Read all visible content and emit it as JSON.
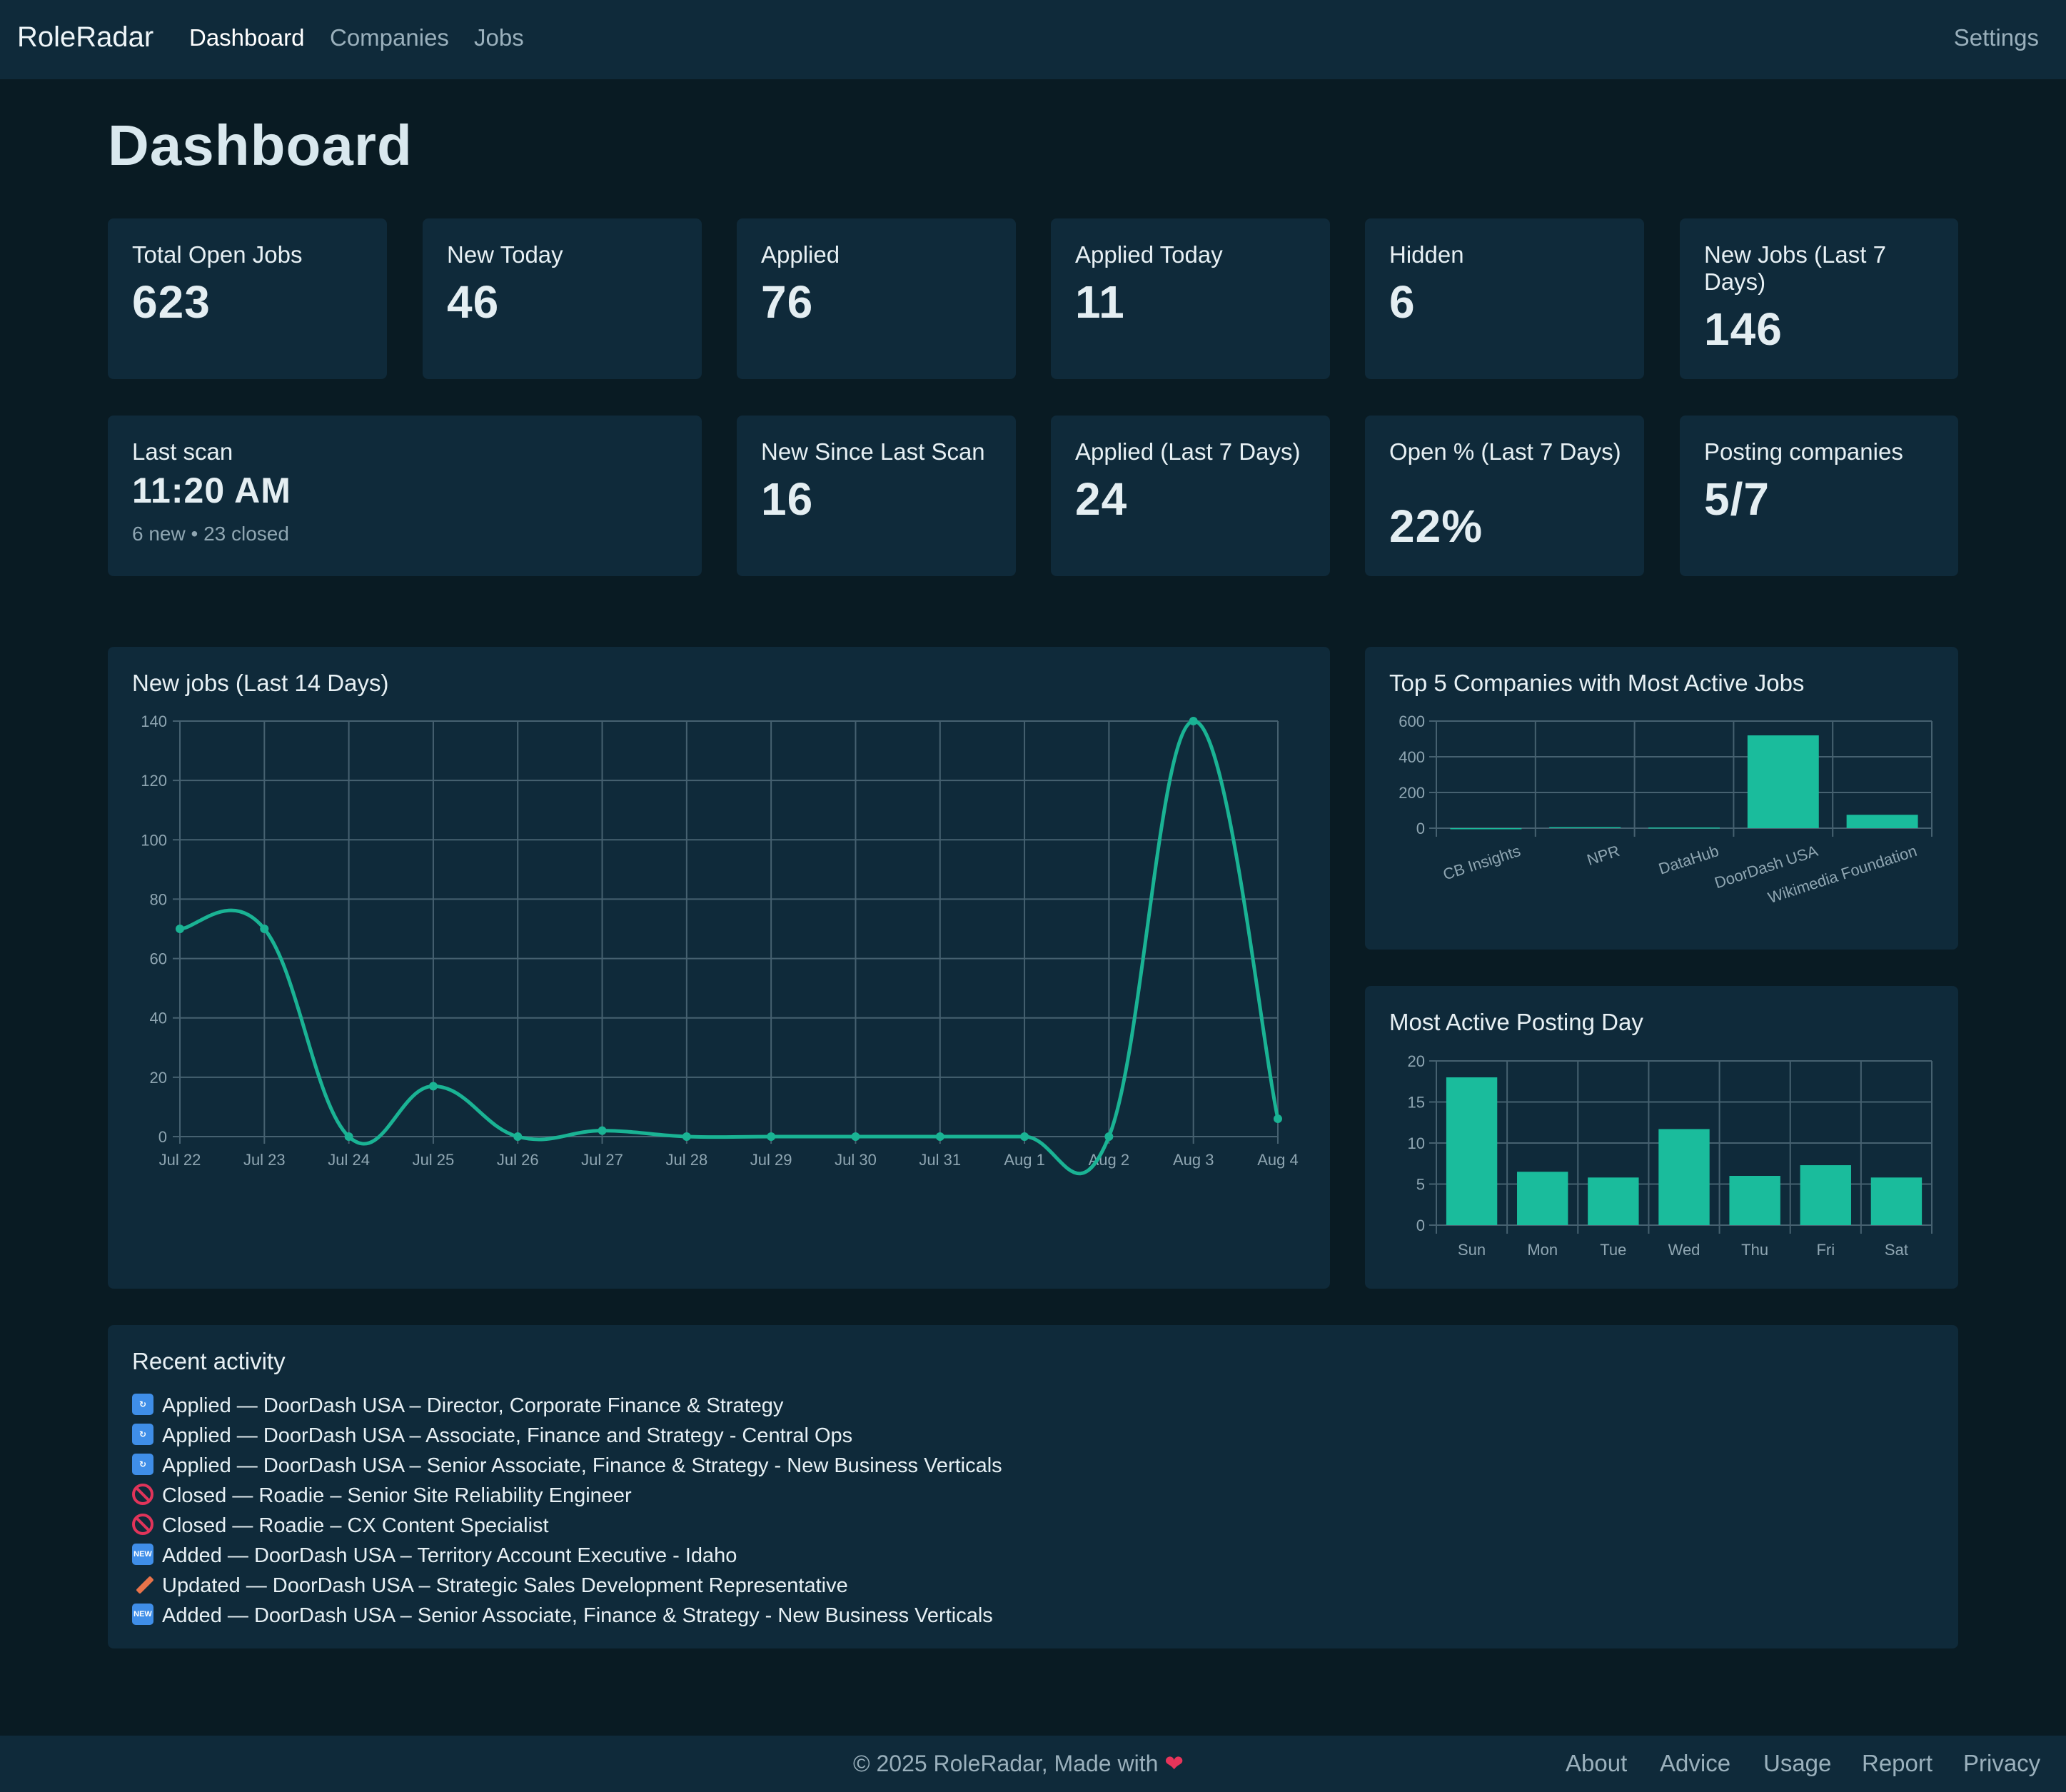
{
  "nav": {
    "brand": "RoleRadar",
    "links": [
      "Dashboard",
      "Companies",
      "Jobs"
    ],
    "settings": "Settings"
  },
  "page": {
    "title": "Dashboard"
  },
  "stats": [
    {
      "label": "Total Open Jobs",
      "value": "623"
    },
    {
      "label": "New Today",
      "value": "46"
    },
    {
      "label": "Applied",
      "value": "76"
    },
    {
      "label": "Applied Today",
      "value": "11"
    },
    {
      "label": "Hidden",
      "value": "6"
    },
    {
      "label": "New Jobs (Last 7 Days)",
      "value": "146"
    },
    {
      "label": "Last scan",
      "value": "11:20 AM",
      "sub": "6 new • 23 closed"
    },
    {
      "label": "New Since Last Scan",
      "value": "16"
    },
    {
      "label": "Applied (Last 7 Days)",
      "value": "24"
    },
    {
      "label": "Open % (Last 7 Days)",
      "value": "22%"
    },
    {
      "label": "Posting companies",
      "value": "5/7"
    }
  ],
  "chart_data": [
    {
      "type": "line",
      "title": "New jobs (Last 14 Days)",
      "x": [
        "Jul 22",
        "Jul 23",
        "Jul 24",
        "Jul 25",
        "Jul 26",
        "Jul 27",
        "Jul 28",
        "Jul 29",
        "Jul 30",
        "Jul 31",
        "Aug 1",
        "Aug 2",
        "Aug 3",
        "Aug 4"
      ],
      "values": [
        70,
        70,
        0,
        17,
        0,
        2,
        0,
        0,
        0,
        0,
        0,
        0,
        140,
        6
      ],
      "ylim": [
        0,
        140
      ],
      "yticks": [
        0,
        20,
        40,
        60,
        80,
        100,
        120,
        140
      ],
      "grid": true,
      "color": "#1ab394"
    },
    {
      "type": "bar",
      "title": "Top 5 Companies with Most Active Jobs",
      "categories": [
        "CB Insights",
        "NPR",
        "DataHub",
        "DoorDash USA",
        "Wikimedia Foundation"
      ],
      "values": [
        0,
        6,
        4,
        520,
        75
      ],
      "ylim": [
        0,
        600
      ],
      "yticks": [
        0,
        200,
        400,
        600
      ],
      "grid": true,
      "color": "#1abc9c"
    },
    {
      "type": "bar",
      "title": "Most Active Posting Day",
      "categories": [
        "Sun",
        "Mon",
        "Tue",
        "Wed",
        "Thu",
        "Fri",
        "Sat"
      ],
      "values": [
        18,
        6.5,
        5.8,
        11.7,
        6,
        7.3,
        5.8
      ],
      "ylim": [
        0,
        20
      ],
      "yticks": [
        0,
        5,
        10,
        15,
        20
      ],
      "grid": true,
      "color": "#1abc9c"
    }
  ],
  "activity": {
    "title": "Recent activity",
    "items": [
      {
        "icon": "applied",
        "text": "Applied — DoorDash USA – Director, Corporate Finance & Strategy"
      },
      {
        "icon": "applied",
        "text": "Applied — DoorDash USA – Associate, Finance and Strategy - Central Ops"
      },
      {
        "icon": "applied",
        "text": "Applied — DoorDash USA – Senior Associate, Finance & Strategy - New Business Verticals"
      },
      {
        "icon": "closed",
        "text": "Closed — Roadie – Senior Site Reliability Engineer"
      },
      {
        "icon": "closed",
        "text": "Closed — Roadie – CX Content Specialist"
      },
      {
        "icon": "added",
        "text": "Added — DoorDash USA – Territory Account Executive - Idaho"
      },
      {
        "icon": "updated",
        "text": "Updated — DoorDash USA – Strategic Sales Development Representative"
      },
      {
        "icon": "added",
        "text": "Added — DoorDash USA – Senior Associate, Finance & Strategy - New Business Verticals"
      }
    ]
  },
  "footer": {
    "copyright": "© 2025 RoleRadar, Made with",
    "links": [
      "About",
      "Advice",
      "Usage",
      "Report",
      "Privacy"
    ]
  }
}
